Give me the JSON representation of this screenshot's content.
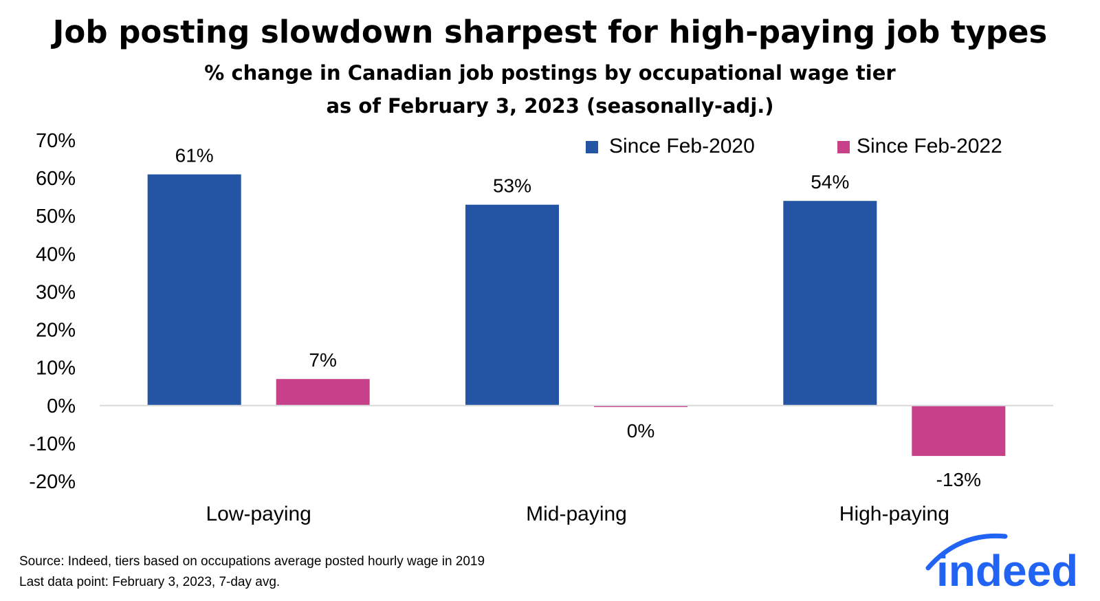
{
  "chart_data": {
    "type": "bar",
    "title": "Job posting slowdown sharpest for high-paying job types",
    "subtitle_line1": "% change in Canadian job postings by occupational wage tier",
    "subtitle_line2": "as of February 3, 2023 (seasonally-adj.)",
    "categories": [
      "Low-paying",
      "Mid-paying",
      "High-paying"
    ],
    "series": [
      {
        "name": "Since Feb-2020",
        "color": "#2455A4",
        "values": [
          61,
          53,
          54
        ],
        "labels": [
          "61%",
          "53%",
          "54%"
        ]
      },
      {
        "name": "Since Feb-2022",
        "color": "#C7418A",
        "values": [
          7,
          -0.4,
          -13.3
        ],
        "labels": [
          "7%",
          "0%",
          "-13%"
        ]
      }
    ],
    "ylim": [
      -20,
      70
    ],
    "yticks": [
      70,
      60,
      50,
      40,
      30,
      20,
      10,
      0,
      -10,
      -20
    ],
    "ytick_labels": [
      "70%",
      "60%",
      "50%",
      "40%",
      "30%",
      "20%",
      "10%",
      "0%",
      "-10%",
      "-20%"
    ],
    "xlabel": "",
    "ylabel": "",
    "legend_position": "top-right",
    "grid": false
  },
  "footer": {
    "source": "Source: Indeed, tiers based on occupations average posted hourly wage in 2019",
    "last_data": "Last data point: February 3, 2023, 7-day avg.",
    "logo_text": "indeed"
  },
  "colors": {
    "logo": "#2164F3",
    "axis": "#D9D9D9"
  }
}
